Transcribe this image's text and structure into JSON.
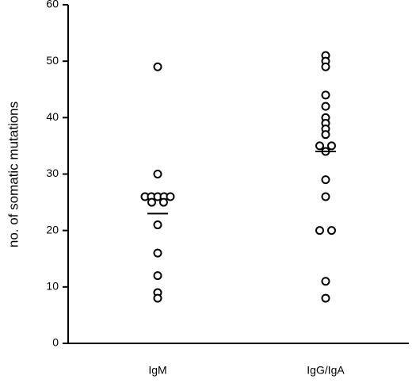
{
  "chart_data": {
    "type": "dot",
    "y_label": "no. of somatic mutations",
    "categories": [
      "IgM",
      "IgG/IgA"
    ],
    "values": [
      [
        49,
        30,
        26,
        26,
        26,
        26,
        26,
        25,
        25,
        21,
        16,
        12,
        9,
        8
      ],
      [
        51,
        50,
        49,
        44,
        42,
        40,
        39,
        38,
        37,
        35,
        35,
        34,
        29,
        26,
        20,
        20,
        11,
        8
      ]
    ],
    "means": [
      23,
      34
    ],
    "color": "#000000",
    "ylim": [
      0,
      60
    ],
    "yticks": [
      0,
      10,
      20,
      30,
      40,
      50,
      60
    ]
  }
}
